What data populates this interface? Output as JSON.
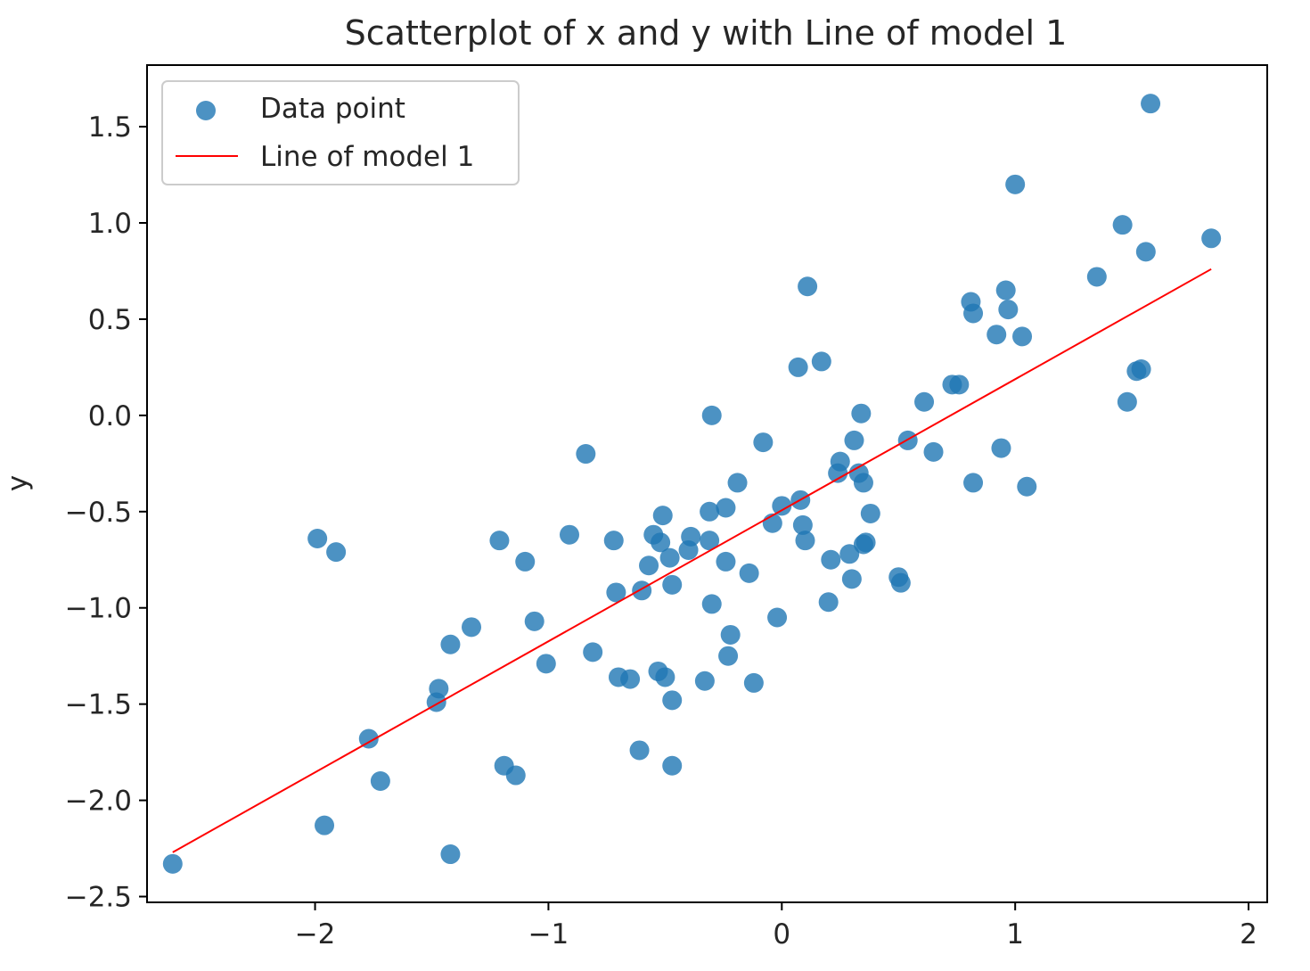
{
  "chart_data": {
    "type": "scatter",
    "title": "Scatterplot of x and y with Line of model 1",
    "xlabel": "",
    "ylabel": "y",
    "xlim": [
      -2.72,
      2.08
    ],
    "ylim": [
      -2.53,
      1.82
    ],
    "xticks": [
      -2,
      -1,
      0,
      1,
      2
    ],
    "xtick_labels": [
      "−2",
      "−1",
      "0",
      "1",
      "2"
    ],
    "yticks": [
      -2.5,
      -2.0,
      -1.5,
      -1.0,
      -0.5,
      0.0,
      0.5,
      1.0,
      1.5
    ],
    "ytick_labels": [
      "−2.5",
      "−2.0",
      "−1.5",
      "−1.0",
      "−0.5",
      "0.0",
      "0.5",
      "1.0",
      "1.5"
    ],
    "grid": false,
    "legend": {
      "position": "upper-left",
      "entries": [
        {
          "label": "Data point",
          "marker": "circle",
          "color": "#1f77b4"
        },
        {
          "label": "Line of model 1",
          "marker": "line",
          "color": "#ff0000"
        }
      ]
    },
    "series": [
      {
        "name": "Data point",
        "kind": "scatter",
        "color": "#1f77b4",
        "alpha": 0.8,
        "x": [
          -2.61,
          -1.99,
          -1.91,
          -1.96,
          -1.77,
          -1.72,
          -1.47,
          -1.48,
          -1.42,
          -1.42,
          -1.33,
          -1.21,
          -1.19,
          -1.14,
          -1.1,
          -1.06,
          -1.01,
          -0.91,
          -0.84,
          -0.81,
          -0.72,
          -0.71,
          -0.7,
          -0.65,
          -0.61,
          -0.6,
          -0.57,
          -0.55,
          -0.53,
          -0.52,
          -0.51,
          -0.5,
          -0.48,
          -0.47,
          -0.47,
          -0.47,
          -0.4,
          -0.39,
          -0.33,
          -0.31,
          -0.31,
          -0.3,
          -0.3,
          -0.24,
          -0.24,
          -0.23,
          -0.22,
          -0.19,
          -0.14,
          -0.12,
          -0.08,
          -0.04,
          -0.02,
          0.0,
          0.07,
          0.08,
          0.09,
          0.1,
          0.11,
          0.17,
          0.2,
          0.21,
          0.24,
          0.25,
          0.29,
          0.3,
          0.31,
          0.33,
          0.34,
          0.35,
          0.35,
          0.36,
          0.38,
          0.5,
          0.51,
          0.54,
          0.61,
          0.65,
          0.73,
          0.76,
          0.81,
          0.82,
          0.82,
          0.92,
          0.94,
          0.96,
          0.97,
          1.0,
          1.03,
          1.05,
          1.35,
          1.46,
          1.48,
          1.52,
          1.54,
          1.56,
          1.58,
          1.84
        ],
        "y": [
          -2.33,
          -0.64,
          -0.71,
          -2.13,
          -1.68,
          -1.9,
          -1.42,
          -1.49,
          -1.19,
          -2.28,
          -1.1,
          -0.65,
          -1.82,
          -1.87,
          -0.76,
          -1.07,
          -1.29,
          -0.62,
          -0.2,
          -1.23,
          -0.65,
          -0.92,
          -1.36,
          -1.37,
          -1.74,
          -0.91,
          -0.78,
          -0.62,
          -1.33,
          -0.66,
          -0.52,
          -1.36,
          -0.74,
          -1.48,
          -0.88,
          -1.82,
          -0.7,
          -0.63,
          -1.38,
          -0.65,
          -0.5,
          -0.98,
          0.0,
          -0.48,
          -0.76,
          -1.25,
          -1.14,
          -0.35,
          -0.82,
          -1.39,
          -0.14,
          -0.56,
          -1.05,
          -0.47,
          0.25,
          -0.44,
          -0.57,
          -0.65,
          0.67,
          0.28,
          -0.97,
          -0.75,
          -0.3,
          -0.24,
          -0.72,
          -0.85,
          -0.13,
          -0.3,
          0.01,
          -0.35,
          -0.67,
          -0.66,
          -0.51,
          -0.84,
          -0.87,
          -0.13,
          0.07,
          -0.19,
          0.16,
          0.16,
          0.59,
          0.53,
          -0.35,
          0.42,
          -0.17,
          0.65,
          0.55,
          1.2,
          0.41,
          -0.37,
          0.72,
          0.99,
          0.07,
          0.23,
          0.24,
          0.85,
          1.62,
          0.92
        ]
      },
      {
        "name": "Line of model 1",
        "kind": "line",
        "color": "#ff0000",
        "x": [
          -2.61,
          1.84
        ],
        "y": [
          -2.27,
          0.76
        ]
      }
    ]
  }
}
